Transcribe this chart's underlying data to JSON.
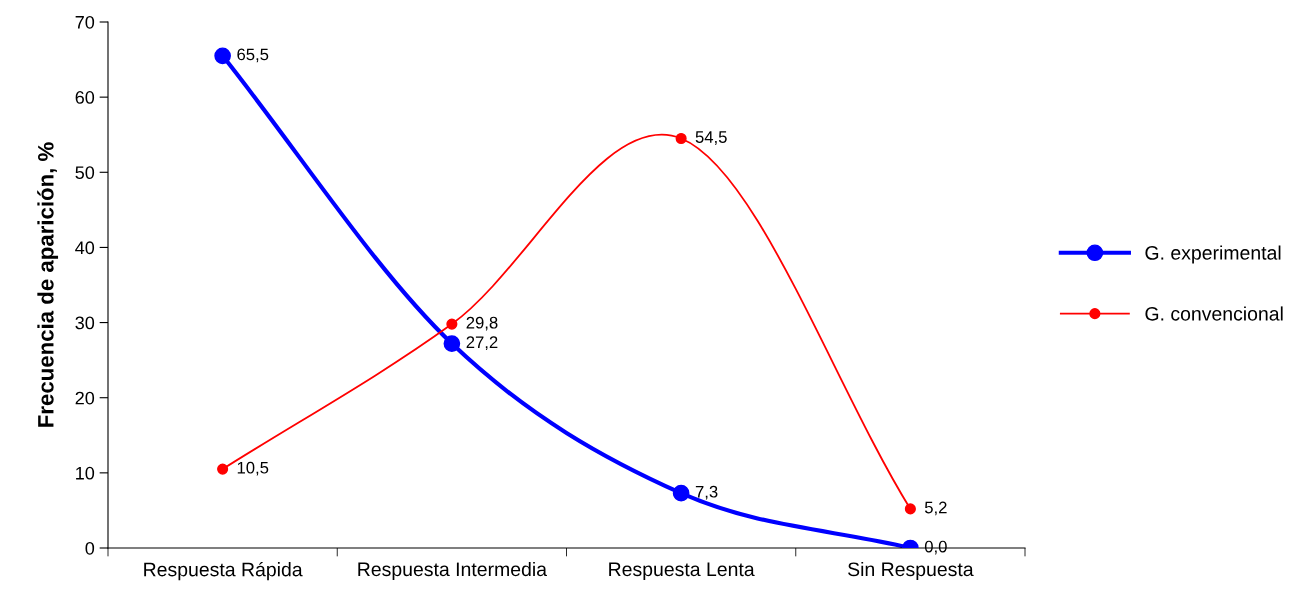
{
  "chart_data": {
    "type": "line",
    "ylabel": "Frecuencia de aparición, %",
    "categories": [
      "Respuesta Rápida",
      "Respuesta Intermedia",
      "Respuesta Lenta",
      "Sin Respuesta"
    ],
    "series": [
      {
        "name": "G. experimental",
        "color": "#0000ff",
        "values": [
          65.5,
          27.2,
          7.3,
          0.0
        ],
        "value_labels": [
          "65,5",
          "27,2",
          "7,3",
          "0,0"
        ]
      },
      {
        "name": "G. convencional",
        "color": "#ff0000",
        "values": [
          10.5,
          29.8,
          54.5,
          5.2
        ],
        "value_labels": [
          "10,5",
          "29,8",
          "54,5",
          "5,2"
        ]
      }
    ],
    "ylim": [
      0,
      70
    ],
    "yticks": [
      0,
      10,
      20,
      30,
      40,
      50,
      60,
      70
    ],
    "marker": "circle",
    "line_style": "solid",
    "grid": false,
    "legend": "right"
  }
}
